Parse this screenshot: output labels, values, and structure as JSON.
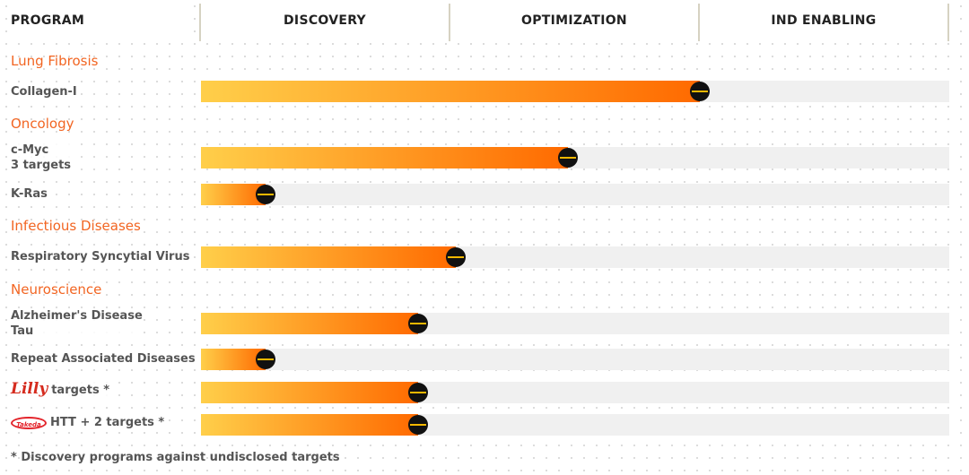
{
  "header": {
    "program": "PROGRAM",
    "stages": [
      "DISCOVERY",
      "OPTIMIZATION",
      "IND ENABLING"
    ]
  },
  "colors": {
    "accent": "#f26522",
    "bar_start": "#ffcf4a",
    "bar_end": "#ff6a00",
    "track": "#f0f0f0",
    "knob": "#111111",
    "knob_stripe": "#f5b800"
  },
  "categories": [
    "Lung Fibrosis",
    "Oncology",
    "Infectious Diseases",
    "Neuroscience"
  ],
  "programs": [
    {
      "label": "Collagen-I",
      "sub": ""
    },
    {
      "label": "c-Myc",
      "sub": "3 targets"
    },
    {
      "label": "K-Ras",
      "sub": ""
    },
    {
      "label": "Respiratory Syncytial Virus",
      "sub": ""
    },
    {
      "label": "Alzheimer's Disease",
      "sub": "Tau"
    },
    {
      "label": "Repeat Associated Diseases",
      "sub": ""
    },
    {
      "label": "targets *",
      "sub": "",
      "partner_logo": "Lilly"
    },
    {
      "label": "HTT + 2 targets *",
      "sub": "",
      "partner_logo": "Takeda"
    }
  ],
  "chart_data": {
    "type": "bar",
    "orientation": "horizontal",
    "categories": [
      "Collagen-I",
      "c-Myc",
      "K-Ras",
      "Respiratory Syncytial Virus",
      "Alzheimer's Disease",
      "Repeat Associated Diseases",
      "Lilly targets",
      "Takeda HTT + 2 targets"
    ],
    "stages": [
      "DISCOVERY",
      "OPTIMIZATION",
      "IND ENABLING"
    ],
    "values": [
      2.0,
      1.47,
      0.26,
      1.02,
      0.87,
      0.26,
      0.87,
      0.87
    ],
    "xlim": [
      0,
      3
    ]
  },
  "footnote": "* Discovery programs against undisclosed targets"
}
